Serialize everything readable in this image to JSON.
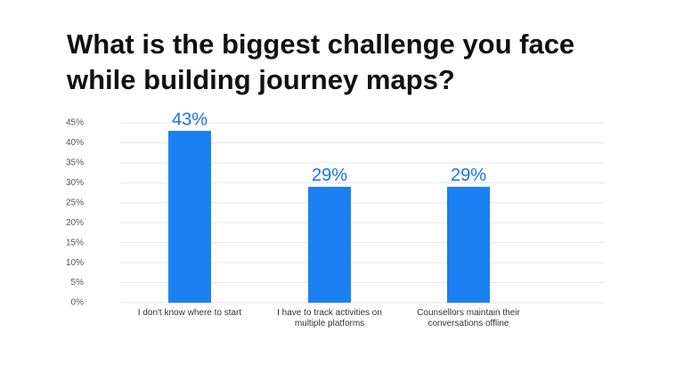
{
  "chart_data": {
    "type": "bar",
    "title": "What is the biggest challenge you face while building journey maps?",
    "categories": [
      "I don't know where to start",
      "I have to track activities on multiple platforms",
      "Counsellors maintain their conversations offline"
    ],
    "values": [
      43,
      29,
      29
    ],
    "value_labels": [
      "43%",
      "29%",
      "29%"
    ],
    "color": "#1a80f2",
    "ylim": [
      0,
      45
    ],
    "yticks": [
      {
        "value": 0,
        "label": "0%"
      },
      {
        "value": 5,
        "label": "5%"
      },
      {
        "value": 10,
        "label": "10%"
      },
      {
        "value": 15,
        "label": "15%"
      },
      {
        "value": 20,
        "label": "20%"
      },
      {
        "value": 25,
        "label": "25%"
      },
      {
        "value": 30,
        "label": "30%"
      },
      {
        "value": 35,
        "label": "35%"
      },
      {
        "value": 40,
        "label": "40%"
      },
      {
        "value": 45,
        "label": "45%"
      }
    ],
    "grid": true
  }
}
